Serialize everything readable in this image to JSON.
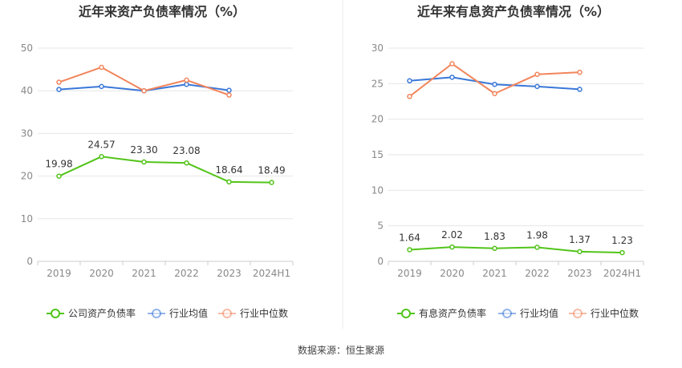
{
  "source_text": "数据来源：恒生聚源",
  "colors": {
    "green": "#52c41a",
    "blue": "#3a78d8",
    "orange": "#f2855c",
    "grid": "#e6e6e6",
    "axis": "#cccccc",
    "divider": "#e8e8e8"
  },
  "chart_data": [
    {
      "type": "line",
      "title": "近年来资产负债率情况（%）",
      "categories": [
        "2019",
        "2020",
        "2021",
        "2022",
        "2023",
        "2024H1"
      ],
      "ylim": [
        0,
        50
      ],
      "yticks": [
        0,
        10,
        20,
        30,
        40,
        50
      ],
      "series": [
        {
          "name": "公司资产负债率",
          "color": "green",
          "values": [
            19.98,
            24.57,
            23.3,
            23.08,
            18.64,
            18.49
          ],
          "labels": [
            "19.98",
            "24.57",
            "23.30",
            "23.08",
            "18.64",
            "18.49"
          ]
        },
        {
          "name": "行业均值",
          "color": "blue",
          "values": [
            40.3,
            41.0,
            40.0,
            41.5,
            40.1,
            null
          ]
        },
        {
          "name": "行业中位数",
          "color": "orange",
          "values": [
            42.0,
            45.5,
            40.0,
            42.5,
            39.0,
            null
          ]
        }
      ]
    },
    {
      "type": "line",
      "title": "近年来有息资产负债率情况（%）",
      "categories": [
        "2019",
        "2020",
        "2021",
        "2022",
        "2023",
        "2024H1"
      ],
      "ylim": [
        0,
        30
      ],
      "yticks": [
        0,
        5,
        10,
        15,
        20,
        25,
        30
      ],
      "series": [
        {
          "name": "有息资产负债率",
          "color": "green",
          "values": [
            1.64,
            2.02,
            1.83,
            1.98,
            1.37,
            1.23
          ],
          "labels": [
            "1.64",
            "2.02",
            "1.83",
            "1.98",
            "1.37",
            "1.23"
          ]
        },
        {
          "name": "行业均值",
          "color": "blue",
          "values": [
            25.4,
            25.9,
            24.9,
            24.6,
            24.2,
            null
          ]
        },
        {
          "name": "行业中位数",
          "color": "orange",
          "values": [
            23.2,
            27.8,
            23.6,
            26.3,
            26.6,
            null
          ]
        }
      ]
    }
  ]
}
